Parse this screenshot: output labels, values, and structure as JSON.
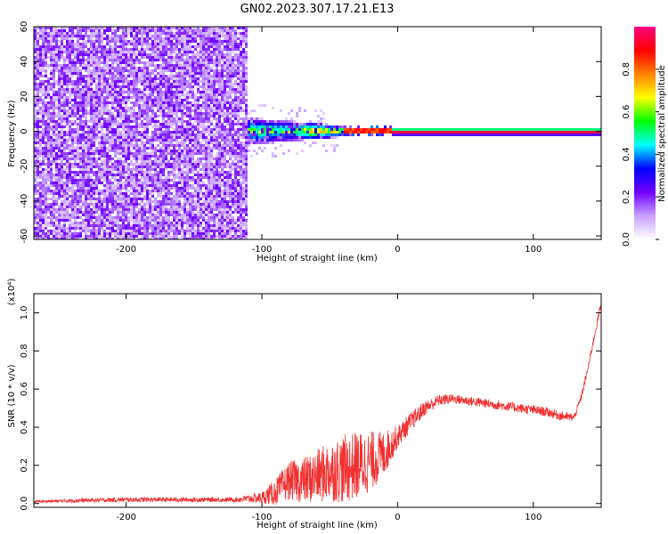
{
  "title": "GN02.2023.307.17.21.E13",
  "chart_data": [
    {
      "type": "heatmap",
      "xlabel": "Height of straight line (km)",
      "ylabel": "Frequency (Hz)",
      "xlim": [
        -268,
        150
      ],
      "ylim": [
        -62,
        60
      ],
      "xticks": [
        -200,
        -100,
        0,
        100
      ],
      "xtick_labels": [
        "-200",
        "-100",
        "0",
        "100"
      ],
      "yticks": [
        -60,
        -40,
        -20,
        0,
        20,
        40,
        60
      ],
      "ytick_labels": [
        "-60",
        "-40",
        "-20",
        "0",
        "20",
        "40",
        "60"
      ],
      "colorbar": {
        "label": "Normalized spectral amplitude",
        "range": [
          0,
          1
        ],
        "ticks": [
          0.0,
          0.2,
          0.4,
          0.6,
          0.8
        ],
        "tick_labels": [
          "0.0",
          "0.2",
          "0.4",
          "0.6",
          "0.8"
        ],
        "colormap": [
          "#ffffff",
          "#c8a0ff",
          "#7000ff",
          "#0000ff",
          "#00ffff",
          "#00ff00",
          "#ffff00",
          "#ff8000",
          "#ff0000",
          "#ff0080"
        ]
      },
      "regions": [
        {
          "x": [
            -268,
            -110
          ],
          "y": [
            -62,
            60
          ],
          "amplitude": [
            0.05,
            0.2
          ],
          "pattern": "broadband noise"
        },
        {
          "x": [
            -110,
            -40
          ],
          "y": [
            -8,
            8
          ],
          "amplitude": [
            0.1,
            0.6
          ],
          "pattern": "scattered energy narrowing toward 0 Hz"
        },
        {
          "x": [
            -40,
            150
          ],
          "y": [
            -1,
            1
          ],
          "amplitude": [
            0.8,
            1.0
          ],
          "pattern": "narrow line at 0 Hz"
        }
      ]
    },
    {
      "type": "line",
      "xlabel": "Height of straight line (km)",
      "ylabel": "SNR (10 * v/v)",
      "scale_label": "(x10⁴)",
      "xlim": [
        -268,
        150
      ],
      "ylim": [
        -0.02,
        1.1
      ],
      "xticks": [
        -200,
        -100,
        0,
        100
      ],
      "xtick_labels": [
        "-200",
        "-100",
        "0",
        "100"
      ],
      "yticks": [
        0.0,
        0.2,
        0.4,
        0.6,
        0.8,
        1.0
      ],
      "ytick_labels": [
        "0.0",
        "0.2",
        "0.4",
        "0.6",
        "0.8",
        "1.0"
      ],
      "series": [
        {
          "color": "#f03030",
          "x": [
            -268,
            -240,
            -200,
            -160,
            -120,
            -100,
            -90,
            -80,
            -70,
            -60,
            -50,
            -40,
            -30,
            -20,
            -10,
            0,
            10,
            20,
            30,
            40,
            50,
            60,
            70,
            80,
            90,
            100,
            110,
            120,
            130,
            135,
            140,
            145,
            150
          ],
          "y": [
            0.01,
            0.015,
            0.02,
            0.02,
            0.02,
            0.03,
            0.06,
            0.12,
            0.12,
            0.14,
            0.17,
            0.18,
            0.2,
            0.22,
            0.26,
            0.35,
            0.43,
            0.5,
            0.54,
            0.55,
            0.54,
            0.53,
            0.52,
            0.51,
            0.5,
            0.49,
            0.48,
            0.46,
            0.45,
            0.55,
            0.7,
            0.88,
            1.05
          ],
          "noise": [
            0.005,
            0.01,
            0.012,
            0.012,
            0.012,
            0.03,
            0.07,
            0.1,
            0.12,
            0.14,
            0.16,
            0.18,
            0.18,
            0.16,
            0.12,
            0.06,
            0.05,
            0.04,
            0.03,
            0.025,
            0.025,
            0.025,
            0.025,
            0.025,
            0.025,
            0.025,
            0.025,
            0.025,
            0.02,
            0.02,
            0.02,
            0.02,
            0.02
          ]
        }
      ]
    }
  ]
}
